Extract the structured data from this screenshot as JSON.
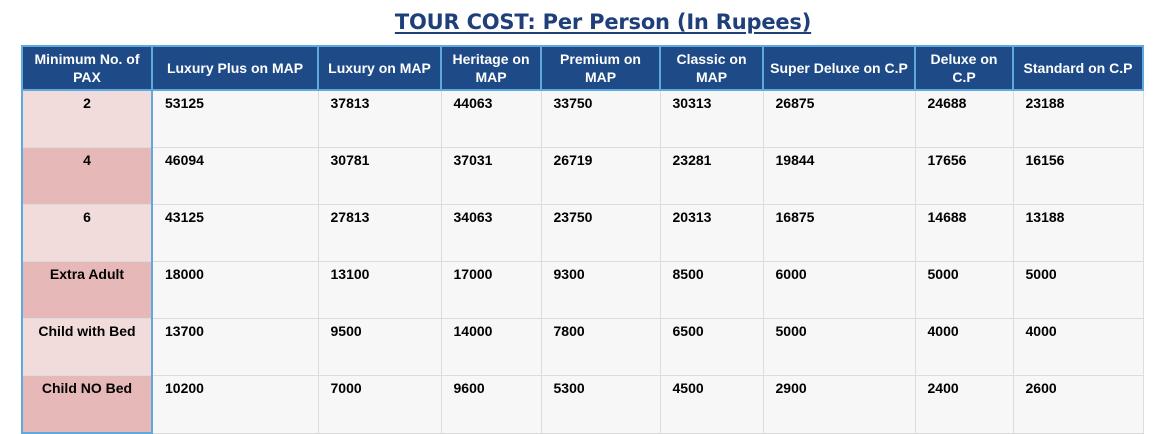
{
  "title": "TOUR COST: Per Person (In Rupees)",
  "headers": [
    "Minimum No. of PAX",
    "Luxury Plus on MAP",
    "Luxury on MAP",
    "Heritage on MAP",
    "Premium on MAP",
    "Classic on MAP",
    "Super Deluxe on C.P",
    "Deluxe on C.P",
    "Standard on C.P"
  ],
  "rows": [
    {
      "pax": "2",
      "values": [
        "53125",
        "37813",
        "44063",
        "33750",
        "30313",
        "26875",
        "24688",
        "23188"
      ]
    },
    {
      "pax": "4",
      "values": [
        "46094",
        "30781",
        "37031",
        "26719",
        "23281",
        "19844",
        "17656",
        "16156"
      ]
    },
    {
      "pax": "6",
      "values": [
        "43125",
        "27813",
        "34063",
        "23750",
        "20313",
        "16875",
        "14688",
        "13188"
      ]
    },
    {
      "pax": "Extra Adult",
      "values": [
        "18000",
        "13100",
        "17000",
        "9300",
        "8500",
        "6000",
        "5000",
        "5000"
      ]
    },
    {
      "pax": "Child with Bed",
      "values": [
        "13700",
        "9500",
        "14000",
        "7800",
        "6500",
        "5000",
        "4000",
        "4000"
      ]
    },
    {
      "pax": "Child NO Bed",
      "values": [
        "10200",
        "7000",
        "9600",
        "5300",
        "4500",
        "2900",
        "2400",
        "2600"
      ]
    }
  ],
  "colors": {
    "header_bg": "#1e4a87",
    "title_text": "#1f3f7a",
    "pax_light": "#f2dcdb",
    "pax_dark": "#e6b8b7",
    "border_accent": "#5fa9de"
  }
}
